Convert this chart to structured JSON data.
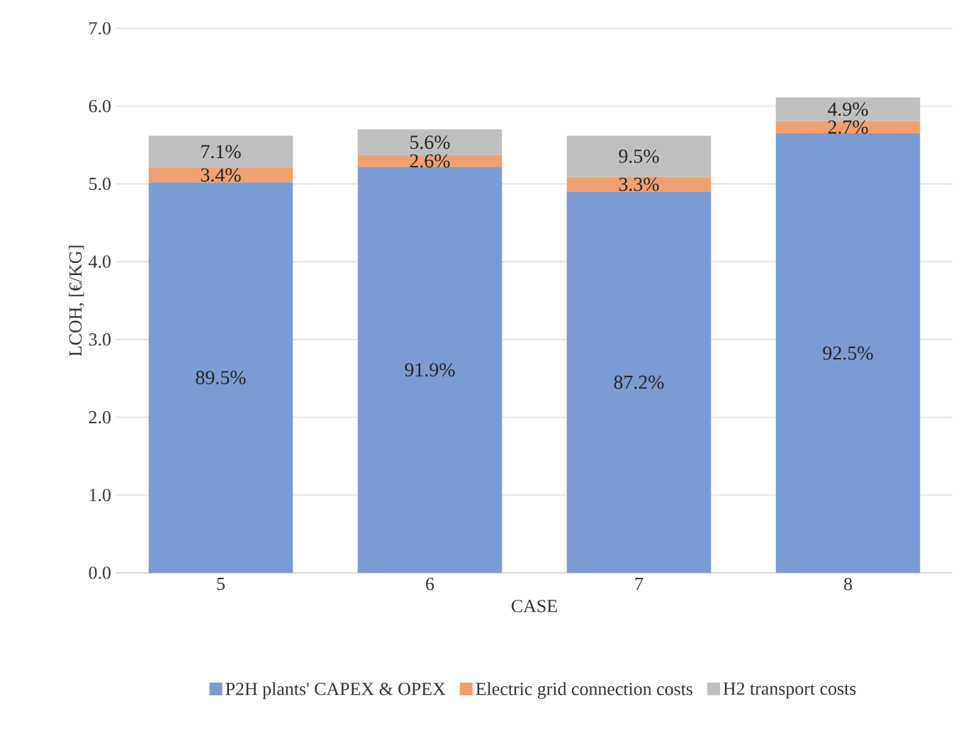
{
  "chart_data": {
    "type": "bar",
    "stacked": true,
    "xlabel": "CASE",
    "ylabel": "LCOH, [€/KG]",
    "categories": [
      "5",
      "6",
      "7",
      "8"
    ],
    "series": [
      {
        "name": "P2H plants' CAPEX & OPEX",
        "color": "#7b9bd3",
        "values": [
          5.02,
          5.22,
          4.9,
          5.65
        ]
      },
      {
        "name": "Electric grid connection costs",
        "color": "#f0a070",
        "values": [
          0.19,
          0.15,
          0.19,
          0.16
        ]
      },
      {
        "name": "H2 transport costs",
        "color": "#bfbfbf",
        "values": [
          0.41,
          0.33,
          0.53,
          0.3
        ]
      }
    ],
    "annotations": [
      "89.5%",
      "91.9%",
      "87.2%",
      "92.5%",
      "3.4%",
      "2.6%",
      "3.3%",
      "2.7%",
      "7.1%",
      "5.6%",
      "9.5%",
      "4.9%"
    ],
    "ylim": [
      0,
      7
    ],
    "yticks": [
      {
        "value": 0,
        "label": "0.0"
      },
      {
        "value": 1,
        "label": "1.0"
      },
      {
        "value": 2,
        "label": "2.0"
      },
      {
        "value": 3,
        "label": "3.0"
      },
      {
        "value": 4,
        "label": "4.0"
      },
      {
        "value": 5,
        "label": "5.0"
      },
      {
        "value": 6,
        "label": "6.0"
      },
      {
        "value": 7,
        "label": "7.0"
      }
    ],
    "grid": "y",
    "legend": "bottom"
  }
}
